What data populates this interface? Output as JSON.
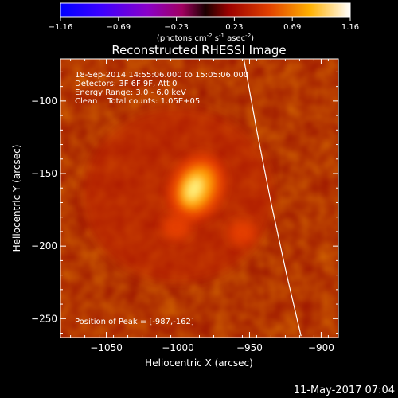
{
  "colorbar": {
    "ticks": [
      "-1.16",
      "-0.69",
      "-0.23",
      "0.23",
      "0.69",
      "1.16"
    ],
    "unit_parts": [
      "(photons cm",
      "-2",
      " s",
      "-1",
      " asec",
      "-2",
      ")"
    ]
  },
  "timestamp": "11-May-2017 07:04",
  "chart_data": {
    "type": "heatmap",
    "title": "Reconstructed RHESSI Image",
    "xlabel": "Heliocentric X (arcsec)",
    "ylabel": "Heliocentric Y (arcsec)",
    "xlim": [
      -1082,
      -888
    ],
    "ylim": [
      -263,
      -71
    ],
    "x_ticks": [
      -1050,
      -1000,
      -950,
      -900
    ],
    "y_ticks": [
      -100,
      -150,
      -200,
      -250
    ],
    "x_tick_labels": [
      "−1050",
      "−1000",
      "−950",
      "−900"
    ],
    "y_tick_labels": [
      "−100",
      "−150",
      "−200",
      "−250"
    ],
    "colormap_range": [
      -1.16,
      1.16
    ],
    "info_lines": [
      "18-Sep-2014 14:55:06.000 to 15:05:06.000",
      "Detectors: 3F 6F 9F, Att 0",
      "Energy Range: 3.0 - 6.0 keV",
      "Clean    Total counts: 1.05E+05"
    ],
    "peak_label": "Position of Peak = [-987,-162]",
    "peak": [
      -987,
      -162
    ],
    "sources": [
      {
        "x": -987,
        "y": -160,
        "intensity": 1.0
      },
      {
        "x": -1001,
        "y": -187,
        "intensity": 0.45
      },
      {
        "x": -955,
        "y": -191,
        "intensity": 0.38
      }
    ],
    "limb_curve": [
      [
        -954,
        -71
      ],
      [
        -945,
        -120
      ],
      [
        -935,
        -170
      ],
      [
        -924,
        -220
      ],
      [
        -914,
        -262
      ]
    ]
  }
}
